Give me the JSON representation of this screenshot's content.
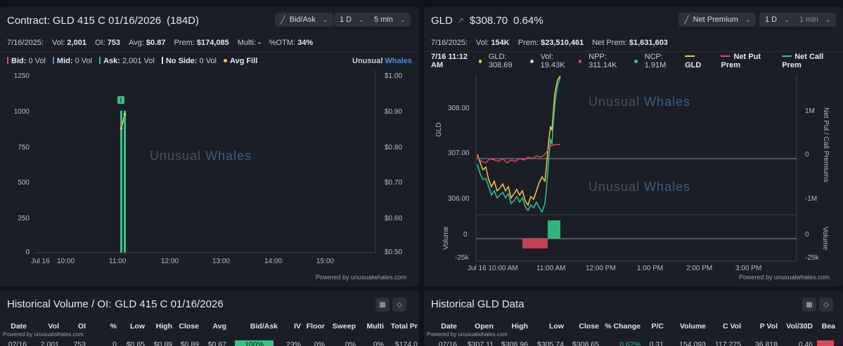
{
  "left": {
    "title_prefix": "Contract:",
    "contract": "GLD 415 C 01/16/2026",
    "days": "(184D)",
    "controls": {
      "mode": "Bid/Ask",
      "range": "1 D",
      "interval": "5 min"
    },
    "stats": {
      "date": "7/16/2025:",
      "vol_label": "Vol:",
      "vol": "2,001",
      "oi_label": "OI:",
      "oi": "753",
      "avg_label": "Avg:",
      "avg": "$0.87",
      "prem_label": "Prem:",
      "prem": "$174,085",
      "multi_label": "Multi:",
      "multi": "-",
      "otm_label": "%OTM:",
      "otm": "34%"
    },
    "legend": {
      "bid": "Bid:",
      "bid_val": "0 Vol",
      "mid": "Mid:",
      "mid_val": "0 Vol",
      "ask": "Ask:",
      "ask_val": "2,001 Vol",
      "noside": "No Side:",
      "noside_val": "0 Vol",
      "avgfill": "Avg Fill",
      "brand1": "Unusual",
      "brand2": "Whales"
    },
    "watermark1": "Unusual",
    "watermark2": "Whales",
    "y_left_ticks": [
      "1250",
      "1000",
      "750",
      "500",
      "250",
      "0"
    ],
    "y_right_ticks": [
      "$1.00",
      "$0.90",
      "$0.80",
      "$0.70",
      "$0.60",
      "$0.50"
    ],
    "x_ticks": [
      "Jul 16",
      "10:00",
      "11:00",
      "12:00",
      "13:00",
      "14:00",
      "15:00"
    ],
    "marker": "!",
    "powered": "Powered by unusualwhales.com",
    "colors": {
      "ask": "#35c28a",
      "bid": "#e0455a",
      "mid": "#4a90d9",
      "avgfill": "#f2c94c"
    },
    "chart_data": {
      "type": "bar",
      "title": "",
      "categories": [
        "10:55",
        "11:00"
      ],
      "series": [
        {
          "name": "Ask",
          "values": [
            1000,
            1000
          ]
        }
      ],
      "avg_fill": [
        0.85,
        0.89
      ],
      "ylim": [
        0,
        1250
      ],
      "ylim_right": [
        0.5,
        1.0
      ]
    }
  },
  "right": {
    "ticker": "GLD",
    "price": "$308.70",
    "change": "0.64%",
    "controls": {
      "mode": "Net Premium",
      "range": "1 D",
      "interval": "1 min"
    },
    "stats": {
      "date": "7/16/2025:",
      "vol_label": "Vol:",
      "vol": "154K",
      "prem_label": "Prem:",
      "prem": "$23,510,461",
      "netprem_label": "Net Prem:",
      "netprem": "$1,631,603"
    },
    "info": {
      "time": "7/16 11:12 AM",
      "gld": "GLD: 308.69",
      "vol": "Vol: 19.43K",
      "npp": "NPP: 311.14K",
      "ncp": "NCP: 1.91M"
    },
    "legend": {
      "gld": "GLD",
      "netput": "Net Put Prem",
      "netcall": "Net Call Prem"
    },
    "watermark1": "Unusual",
    "watermark2": "Whales",
    "y_label": "GLD",
    "y_ticks": [
      "308.00",
      "307.00",
      "306.00"
    ],
    "y_right_label": "Net Put / Call Premiums",
    "y_right_ticks": [
      "1M",
      "0",
      "-1M"
    ],
    "vol_label": "Volume",
    "vol_ticks": [
      "0",
      "-25k"
    ],
    "vol_right_ticks": [
      "0",
      "-25k"
    ],
    "x_ticks": [
      "Jul 16 10:00 AM",
      "11:00 AM",
      "12:00 PM",
      "1:00 PM",
      "2:00 PM",
      "3:00 PM"
    ],
    "powered": "Powered by unusualwhales.com",
    "colors": {
      "gld": "#f2c94c",
      "put": "#e0455a",
      "call": "#35c28a"
    }
  },
  "bottom_left": {
    "title": "Historical Volume / OI:",
    "contract": "GLD 415 C 01/16/2026",
    "columns": [
      "Date",
      "Vol",
      "OI",
      "%",
      "Low",
      "High",
      "Close",
      "Avg",
      "Bid/Ask",
      "IV",
      "Floor",
      "Sweep",
      "Multi",
      "Total Pr"
    ],
    "powered": "Powered by unusualwhales.com",
    "row": [
      "07/16",
      "2,001",
      "753",
      "0",
      "$0.85",
      "$0.89",
      "$0.89",
      "$0.87",
      "100%",
      "23%",
      "0%",
      "0%",
      "0%",
      "$174,0"
    ]
  },
  "bottom_right": {
    "title": "Historical GLD Data",
    "columns": [
      "Date",
      "Open",
      "High",
      "Low",
      "Close",
      "% Change",
      "P/C",
      "Volume",
      "C Vol",
      "P Vol",
      "Vol/30D",
      "Bea"
    ],
    "powered": "Powered by unusualwhales.com",
    "row": [
      "07/16",
      "$307.11",
      "$308.96",
      "$305.74",
      "$308.65",
      "0.62%",
      "0.31",
      "154,093",
      "117,275",
      "36,818",
      "0.46",
      ""
    ]
  }
}
